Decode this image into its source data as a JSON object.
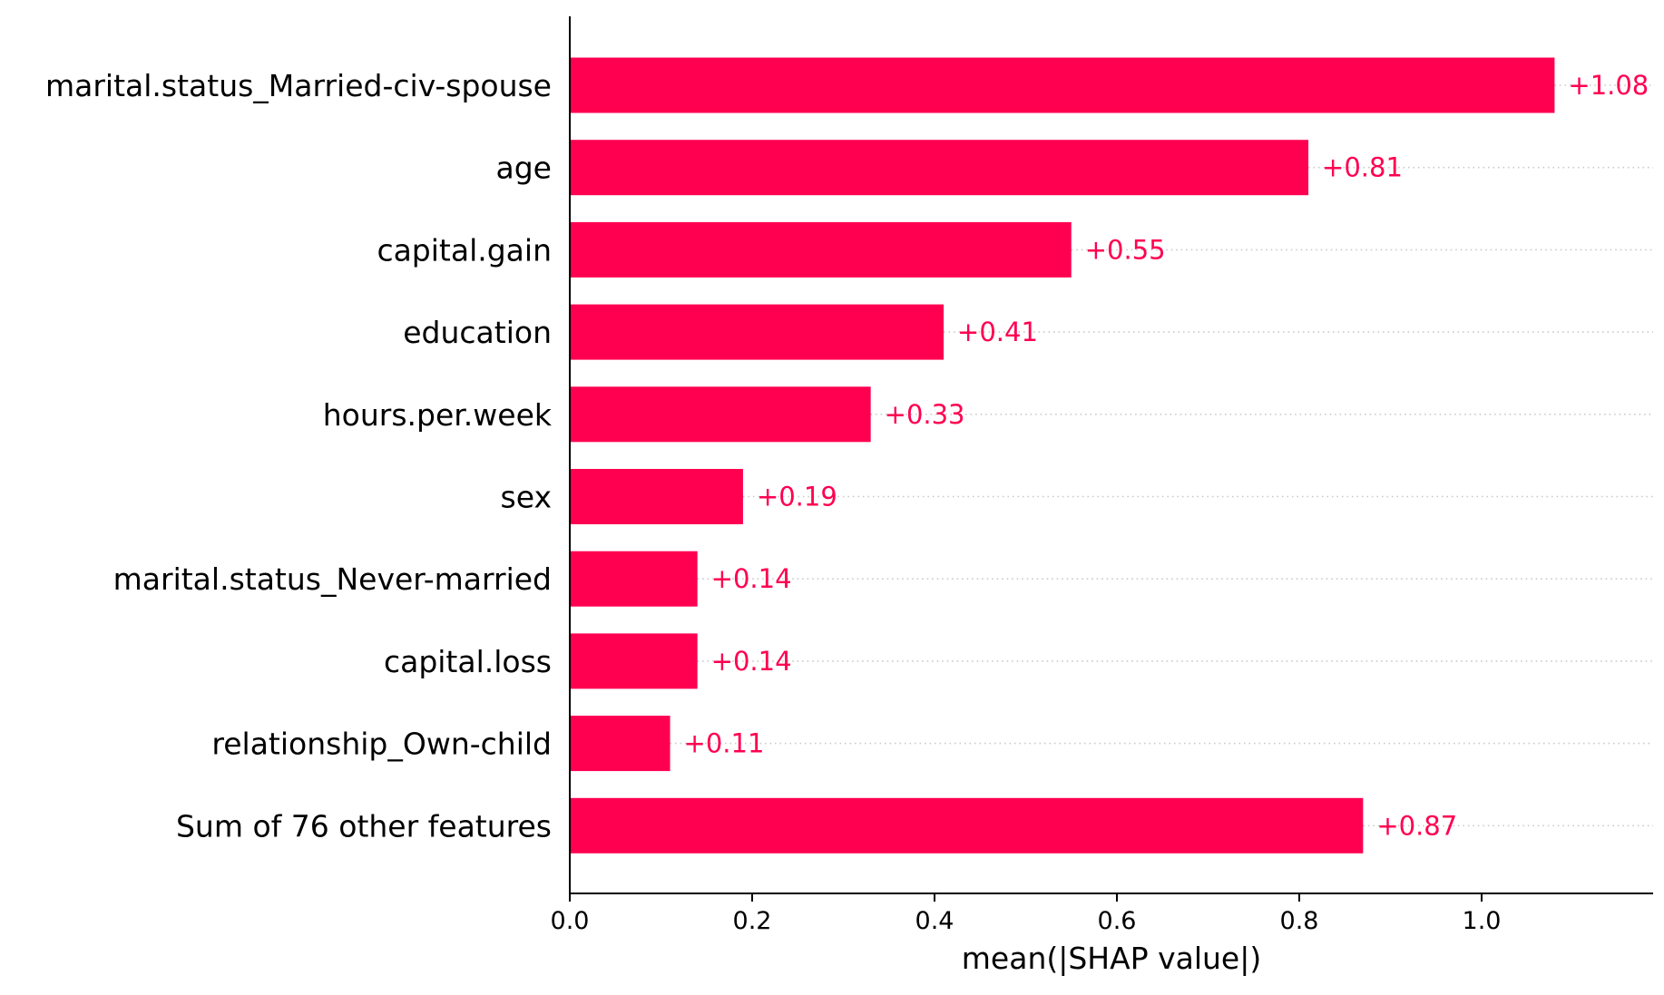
{
  "chart_data": {
    "type": "bar",
    "orientation": "horizontal",
    "categories": [
      "marital.status_Married-civ-spouse",
      "age",
      "capital.gain",
      "education",
      "hours.per.week",
      "sex",
      "marital.status_Never-married",
      "capital.loss",
      "relationship_Own-child",
      "Sum of 76 other features"
    ],
    "values": [
      1.08,
      0.81,
      0.55,
      0.41,
      0.33,
      0.19,
      0.14,
      0.14,
      0.11,
      0.87
    ],
    "value_labels": [
      "+1.08",
      "+0.81",
      "+0.55",
      "+0.41",
      "+0.33",
      "+0.19",
      "+0.14",
      "+0.14",
      "+0.11",
      "+0.87"
    ],
    "xlabel": "mean(|SHAP value|)",
    "ylabel": "",
    "xlim": [
      0,
      1.19
    ],
    "xticks": [
      0.0,
      0.2,
      0.4,
      0.6,
      0.8,
      1.0
    ],
    "xtick_labels": [
      "0.0",
      "0.2",
      "0.4",
      "0.6",
      "0.8",
      "1.0"
    ],
    "grid": "dotted horizontal guide lines after each bar",
    "legend": "none",
    "colors": {
      "bar": "#ff0051",
      "value_label": "#ff0051",
      "axis": "#000000",
      "guide": "#c8c8c8",
      "text": "#000000"
    }
  }
}
